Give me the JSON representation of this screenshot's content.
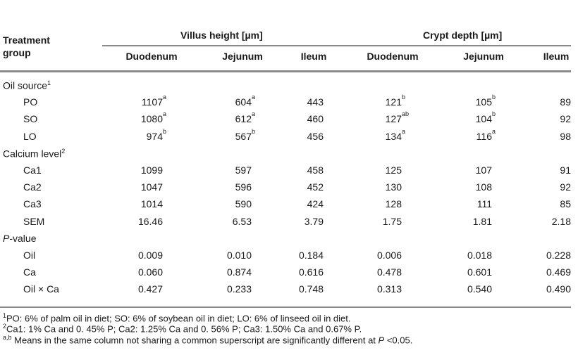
{
  "header": {
    "treatment_line1": "Treatment",
    "treatment_line2": "group",
    "group1": "Villus height [µm]",
    "group2": "Crypt depth [µm]",
    "subcolumns": [
      "Duodenum",
      "Jejunum",
      "Ileum",
      "Duodenum",
      "Jejunum",
      "Ileum"
    ]
  },
  "sections": [
    {
      "label": "Oil source",
      "sup": "1",
      "italic": false,
      "rows": [
        {
          "label": "PO",
          "values": [
            [
              "1107",
              "a"
            ],
            [
              "604",
              "a"
            ],
            [
              "443",
              ""
            ],
            [
              "121",
              "b"
            ],
            [
              "105",
              "b"
            ],
            [
              "89",
              ""
            ]
          ]
        },
        {
          "label": "SO",
          "values": [
            [
              "1080",
              "a"
            ],
            [
              "612",
              "a"
            ],
            [
              "460",
              ""
            ],
            [
              "127",
              "ab"
            ],
            [
              "104",
              "b"
            ],
            [
              "92",
              ""
            ]
          ]
        },
        {
          "label": "LO",
          "values": [
            [
              "974",
              "b"
            ],
            [
              "567",
              "b"
            ],
            [
              "456",
              ""
            ],
            [
              "134",
              "a"
            ],
            [
              "116",
              "a"
            ],
            [
              "98",
              ""
            ]
          ]
        }
      ]
    },
    {
      "label": "Calcium level",
      "sup": "2",
      "italic": false,
      "rows": [
        {
          "label": "Ca1",
          "values": [
            [
              "1099",
              ""
            ],
            [
              "597",
              ""
            ],
            [
              "458",
              ""
            ],
            [
              "125",
              ""
            ],
            [
              "107",
              ""
            ],
            [
              "91",
              ""
            ]
          ]
        },
        {
          "label": "Ca2",
          "values": [
            [
              "1047",
              ""
            ],
            [
              "596",
              ""
            ],
            [
              "452",
              ""
            ],
            [
              "130",
              ""
            ],
            [
              "108",
              ""
            ],
            [
              "92",
              ""
            ]
          ]
        },
        {
          "label": "Ca3",
          "values": [
            [
              "1014",
              ""
            ],
            [
              "590",
              ""
            ],
            [
              "424",
              ""
            ],
            [
              "128",
              ""
            ],
            [
              "111",
              ""
            ],
            [
              "85",
              ""
            ]
          ]
        },
        {
          "label": "SEM",
          "values": [
            [
              "16.46",
              ""
            ],
            [
              "6.53",
              ""
            ],
            [
              "3.79",
              ""
            ],
            [
              "1.75",
              ""
            ],
            [
              "1.81",
              ""
            ],
            [
              "2.18",
              ""
            ]
          ]
        }
      ]
    },
    {
      "label": "P",
      "label_suffix": "-value",
      "sup": "",
      "italic": true,
      "rows": [
        {
          "label": "Oil",
          "values": [
            [
              "0.009",
              ""
            ],
            [
              "0.010",
              ""
            ],
            [
              "0.184",
              ""
            ],
            [
              "0.006",
              ""
            ],
            [
              "0.018",
              ""
            ],
            [
              "0.228",
              ""
            ]
          ]
        },
        {
          "label": "Ca",
          "values": [
            [
              "0.060",
              ""
            ],
            [
              "0.874",
              ""
            ],
            [
              "0.616",
              ""
            ],
            [
              "0.478",
              ""
            ],
            [
              "0.601",
              ""
            ],
            [
              "0.469",
              ""
            ]
          ]
        },
        {
          "label": "Oil × Ca",
          "values": [
            [
              "0.427",
              ""
            ],
            [
              "0.233",
              ""
            ],
            [
              "0.748",
              ""
            ],
            [
              "0.313",
              ""
            ],
            [
              "0.540",
              ""
            ],
            [
              "0.490",
              ""
            ]
          ]
        }
      ]
    }
  ],
  "footnotes": [
    {
      "mark": "1",
      "text": "PO: 6% of palm oil in diet; SO: 6% of soybean oil in diet; LO: 6% of linseed oil in diet."
    },
    {
      "mark": "2",
      "text": "Ca1: 1% Ca and 0. 45% P; Ca2: 1.25% Ca and 0. 56% P; Ca3: 1.50% Ca and 0.67% P."
    },
    {
      "mark": "a,b",
      "text": " Means in the same column not sharing a common superscript are significantly different at ",
      "italic_p": "P",
      "tail": " <0.05."
    }
  ]
}
